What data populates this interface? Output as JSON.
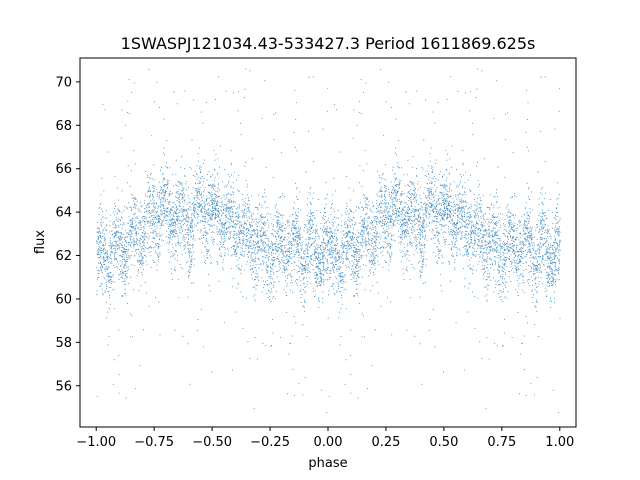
{
  "chart_data": {
    "type": "scatter",
    "title": "1SWASPJ121034.43-533427.3 Period 1611869.625s",
    "xlabel": "phase",
    "ylabel": "flux",
    "xlim": [
      -1.07,
      1.07
    ],
    "ylim": [
      54.1,
      71.1
    ],
    "x_ticks": [
      -1.0,
      -0.75,
      -0.5,
      -0.25,
      0.0,
      0.25,
      0.5,
      0.75,
      1.0
    ],
    "x_tick_labels": [
      "−1.00",
      "−0.75",
      "−0.50",
      "−0.25",
      "0.00",
      "0.25",
      "0.50",
      "0.75",
      "1.00"
    ],
    "y_ticks": [
      56,
      58,
      60,
      62,
      64,
      66,
      68,
      70
    ],
    "y_tick_labels": [
      "56",
      "58",
      "60",
      "62",
      "64",
      "66",
      "68",
      "70"
    ],
    "point_color": "#1f77b4",
    "grid": false,
    "phase_profile": {
      "phase": [
        0.0,
        0.05,
        0.1,
        0.15,
        0.2,
        0.25,
        0.3,
        0.35,
        0.4,
        0.45,
        0.5,
        0.55,
        0.6,
        0.65,
        0.7,
        0.75,
        0.8,
        0.85,
        0.9,
        0.95,
        1.0
      ],
      "mean_flux": [
        62.0,
        62.0,
        62.3,
        62.8,
        63.3,
        63.8,
        64.0,
        63.7,
        63.5,
        64.2,
        64.0,
        63.7,
        63.3,
        63.0,
        62.5,
        62.4,
        62.5,
        62.4,
        62.3,
        62.1,
        62.0
      ],
      "scatter": 1.1
    },
    "n_points_per_cycle": 5000,
    "mirrored": true
  }
}
